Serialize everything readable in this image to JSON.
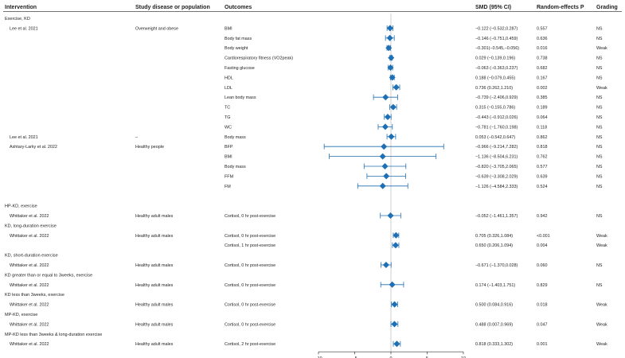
{
  "headers": {
    "intervention": "Intervention",
    "population": "Study disease or population",
    "outcomes": "Outcomes",
    "smd": "SMD (95% CI)",
    "p": "Random-effects P",
    "grading": "Grading"
  },
  "colors": {
    "marker": "#1f6fb4",
    "axis": "#333333",
    "line": "#bbbbbb"
  },
  "chart_data": {
    "type": "forest",
    "xlim": [
      -10,
      10
    ],
    "xticks": [
      "−10",
      "−5",
      "0",
      "5",
      "10"
    ],
    "xtick_values": [
      -10,
      -5,
      0,
      5,
      10
    ],
    "reference_line": 0,
    "rows": [
      {
        "kind": "group",
        "label": "Exercise, KD"
      },
      {
        "kind": "data",
        "study": "Lee et al. 2021",
        "population": "Overweight and obese",
        "outcome": "BMI",
        "smd": -0.122,
        "lo": -0.532,
        "hi": 0.287,
        "ci_text": "−0.122 (−0.532,0.287)",
        "p": "0.557",
        "grade": "NS"
      },
      {
        "kind": "data",
        "study": "",
        "population": "",
        "outcome": "Body fat mass",
        "smd": -0.146,
        "lo": -0.751,
        "hi": 0.459,
        "ci_text": "−0.146 (−0.751,0.459)",
        "p": "0.636",
        "grade": "NS"
      },
      {
        "kind": "data",
        "study": "",
        "population": "",
        "outcome": "Body weight",
        "smd": -0.301,
        "lo": -0.545,
        "hi": -0.056,
        "ci_text": "−0.301(−0.545,−0.056)",
        "p": "0.016",
        "grade": "Weak"
      },
      {
        "kind": "data",
        "study": "",
        "population": "",
        "outcome": "Cardiorespiratory fitness (VO2peak)",
        "smd": 0.029,
        "lo": -0.139,
        "hi": 0.196,
        "ci_text": "0.029 (−0.139,0.196)",
        "p": "0.738",
        "grade": "NS"
      },
      {
        "kind": "data",
        "study": "",
        "population": "",
        "outcome": "Fasting glucose",
        "smd": -0.063,
        "lo": -0.363,
        "hi": 0.237,
        "ci_text": "−0.063 (−0.363,0.237)",
        "p": "0.682",
        "grade": "NS"
      },
      {
        "kind": "data",
        "study": "",
        "population": "",
        "outcome": "HDL",
        "smd": 0.188,
        "lo": -0.079,
        "hi": 0.455,
        "ci_text": "0.188 (−0.079,0.455)",
        "p": "0.167",
        "grade": "NS"
      },
      {
        "kind": "data",
        "study": "",
        "population": "",
        "outcome": "LDL",
        "smd": 0.736,
        "lo": 0.262,
        "hi": 1.21,
        "ci_text": "0.736 (0.262,1.210)",
        "p": "0.002",
        "grade": "Weak"
      },
      {
        "kind": "data",
        "study": "",
        "population": "",
        "outcome": "Lean body mass",
        "smd": -0.739,
        "lo": -2.406,
        "hi": 0.929,
        "ci_text": "−0.739 (−2.406,0.929)",
        "p": "0.385",
        "grade": "NS"
      },
      {
        "kind": "data",
        "study": "",
        "population": "",
        "outcome": "TC",
        "smd": 0.315,
        "lo": -0.155,
        "hi": 0.786,
        "ci_text": "0.315 (−0.155,0.786)",
        "p": "0.189",
        "grade": "NS"
      },
      {
        "kind": "data",
        "study": "",
        "population": "",
        "outcome": "TG",
        "smd": -0.443,
        "lo": -0.912,
        "hi": 0.026,
        "ci_text": "−0.443 (−0.912,0.026)",
        "p": "0.064",
        "grade": "NS"
      },
      {
        "kind": "data",
        "study": "",
        "population": "",
        "outcome": "WC",
        "smd": -0.781,
        "lo": -1.76,
        "hi": 0.198,
        "ci_text": "−0.781 (−1.760,0.198)",
        "p": "0.118",
        "grade": "NS"
      },
      {
        "kind": "data",
        "study": "Lee et al. 2021",
        "population": "–",
        "outcome": "Body mass",
        "smd": 0.053,
        "lo": -0.542,
        "hi": 0.647,
        "ci_text": "0.053 (−0.542,0.647)",
        "p": "0.862",
        "grade": "NS"
      },
      {
        "kind": "data",
        "study": "Ashtary-Larky et al. 2022",
        "population": "Healthy people",
        "outcome": "BFP",
        "smd": -0.966,
        "lo": -9.214,
        "hi": 7.282,
        "ci_text": "−0.966 (−9.214,7.282)",
        "p": "0.818",
        "grade": "NS"
      },
      {
        "kind": "data",
        "study": "",
        "population": "",
        "outcome": "BMI",
        "smd": -1.136,
        "lo": -8.504,
        "hi": 6.231,
        "ci_text": "−1.136 (−8.504,6.231)",
        "p": "0.762",
        "grade": "NS"
      },
      {
        "kind": "data",
        "study": "",
        "population": "",
        "outcome": "Body mass",
        "smd": -0.82,
        "lo": -3.705,
        "hi": 2.065,
        "ci_text": "−0.820 (−3.705,2.065)",
        "p": "0.577",
        "grade": "NS"
      },
      {
        "kind": "data",
        "study": "",
        "population": "",
        "outcome": "FFM",
        "smd": -0.639,
        "lo": -3.308,
        "hi": 2.029,
        "ci_text": "−0.639 (−3.308,2.029)",
        "p": "0.639",
        "grade": "NS"
      },
      {
        "kind": "data",
        "study": "",
        "population": "",
        "outcome": "FM",
        "smd": -1.126,
        "lo": -4.584,
        "hi": 2.333,
        "ci_text": "−1.126 (−4.584,2.333)",
        "p": "0.524",
        "grade": "NS"
      },
      {
        "kind": "spacer"
      },
      {
        "kind": "group",
        "label": "HP-KD, exercise"
      },
      {
        "kind": "data",
        "study": "Whittaker et al. 2022",
        "population": "Healthy adult males",
        "outcome": "Cortisol, 0 hr post-exercise",
        "smd": -0.052,
        "lo": -1.461,
        "hi": 1.357,
        "ci_text": "−0.052 (−1.461,1.357)",
        "p": "0.942",
        "grade": "NS"
      },
      {
        "kind": "group",
        "label": "KD, long-duration exercise"
      },
      {
        "kind": "data",
        "study": "Whittaker et al. 2022",
        "population": "Healthy adult males",
        "outcome": "Cortisol, 0 hr post-exercise",
        "smd": 0.705,
        "lo": 0.326,
        "hi": 1.084,
        "ci_text": "0.705 (0.326,1.084)",
        "p": "<0.001",
        "grade": "Weak"
      },
      {
        "kind": "data",
        "study": "",
        "population": "",
        "outcome": "Cortisol, 1 hr post-exercise",
        "smd": 0.65,
        "lo": 0.206,
        "hi": 1.094,
        "ci_text": "0.650 (0.206,1.094)",
        "p": "0.004",
        "grade": "Weak"
      },
      {
        "kind": "group",
        "label": "KD, short-duration exercise"
      },
      {
        "kind": "data",
        "study": "Whittaker et al. 2022",
        "population": "Healthy adult males",
        "outcome": "Cortisol, 0 hr post-exercise",
        "smd": -0.671,
        "lo": -1.37,
        "hi": 0.028,
        "ci_text": "−0.671 (−1.370,0.028)",
        "p": "0.060",
        "grade": "NS"
      },
      {
        "kind": "group",
        "label": "KD greater than or equal to 3weeks, exercise"
      },
      {
        "kind": "data",
        "study": "Whittaker et al. 2022",
        "population": "Healthy adult males",
        "outcome": "Cortisol, 0 hr post-exercise",
        "smd": 0.174,
        "lo": -1.403,
        "hi": 1.751,
        "ci_text": "0.174 (−1.403,1.751)",
        "p": "0.829",
        "grade": "NS"
      },
      {
        "kind": "group",
        "label": "KD less than 3weeks, exercise"
      },
      {
        "kind": "data",
        "study": "Whittaker et al. 2022",
        "population": "Healthy adult males",
        "outcome": "Cortisol, 0 hr post-exercise",
        "smd": 0.5,
        "lo": 0.084,
        "hi": 0.916,
        "ci_text": "0.500 (0.084,0.916)",
        "p": "0.018",
        "grade": "Weak"
      },
      {
        "kind": "group",
        "label": "MP-KD, exercise"
      },
      {
        "kind": "data",
        "study": "Whittaker et al. 2022",
        "population": "Healthy adult males",
        "outcome": "Cortisol, 0 hr post-exercise",
        "smd": 0.488,
        "lo": 0.007,
        "hi": 0.969,
        "ci_text": "0.488 (0.007,0.969)",
        "p": "0.047",
        "grade": "Weak"
      },
      {
        "kind": "group",
        "label": "MP-KD less than 3weeks & long-duration exercise"
      },
      {
        "kind": "data",
        "study": "Whittaker et al. 2022",
        "population": "Healthy adult males",
        "outcome": "Cortisol, 2 hr post-exercise",
        "smd": 0.818,
        "lo": 0.333,
        "hi": 1.302,
        "ci_text": "0.818 (0.333,1.302)",
        "p": "0.001",
        "grade": "Weak"
      }
    ]
  }
}
